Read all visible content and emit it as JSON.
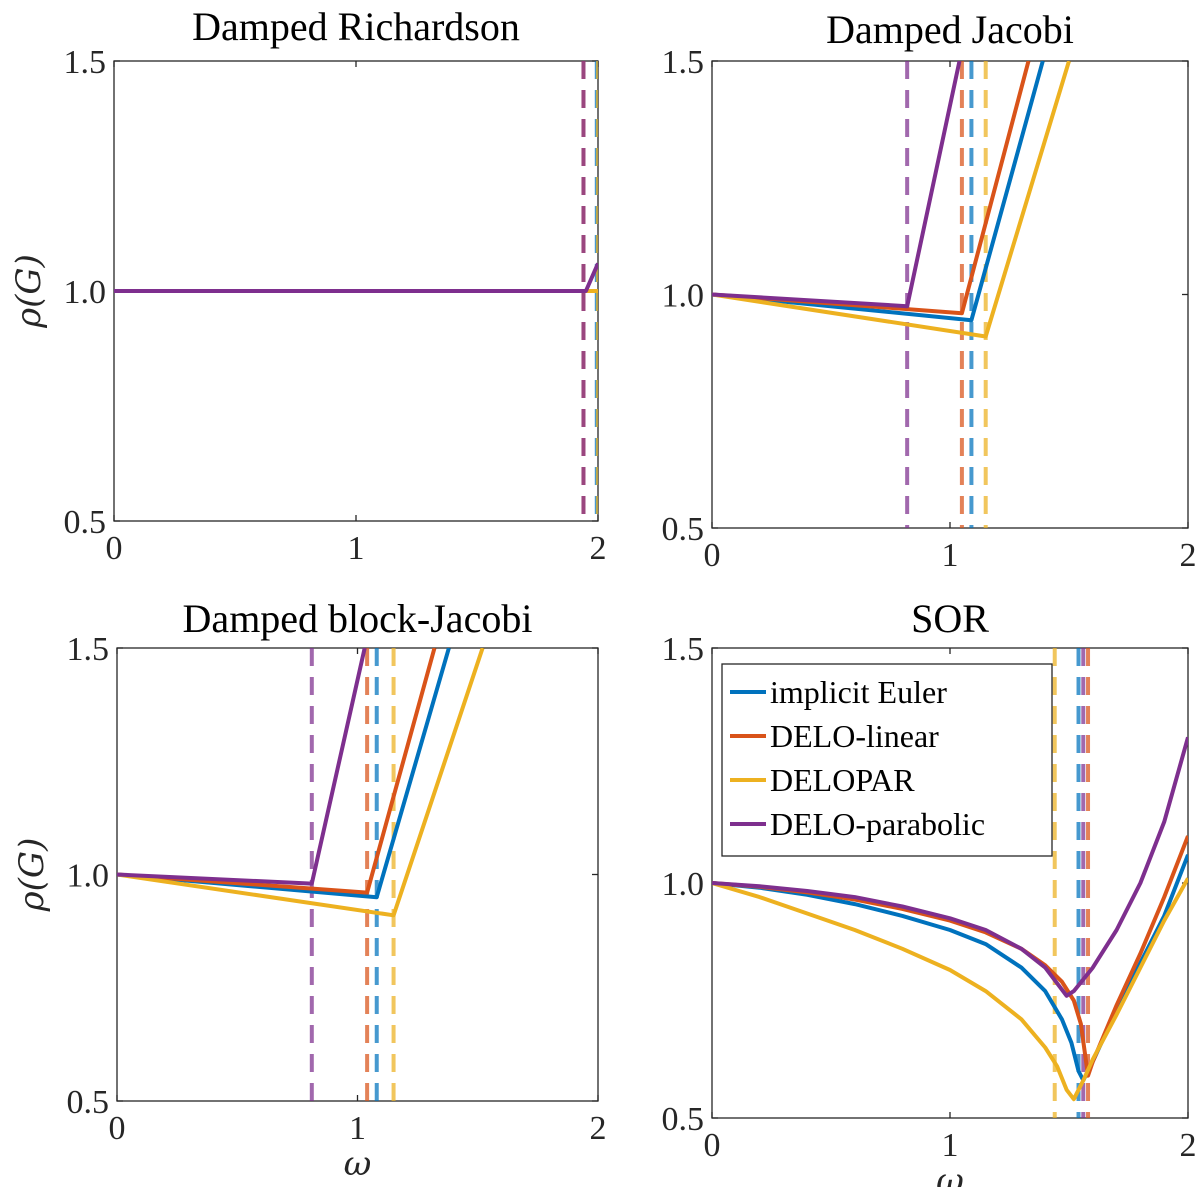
{
  "colors": {
    "implicit Euler": "#0072BD",
    "DELO-linear": "#D95319",
    "DELOPAR": "#EDB120",
    "DELO-parabolic": "#7E2F8E",
    "axis": "#262626"
  },
  "chart_data": [
    {
      "type": "line",
      "title": "Damped Richardson",
      "xlabel": "",
      "ylabel": "ρ(G)",
      "xlim": [
        0,
        2
      ],
      "ylim": [
        0.5,
        1.5
      ],
      "xticks": [
        "0",
        "1",
        "2"
      ],
      "yticks": [
        "0.5",
        "1.0",
        "1.5"
      ],
      "legend": null,
      "series": [
        {
          "name": "implicit Euler",
          "x": [
            0,
            1.95,
            2.0
          ],
          "y": [
            1.0,
            1.0,
            1.0
          ]
        },
        {
          "name": "DELO-linear",
          "x": [
            0,
            1.95,
            2.0
          ],
          "y": [
            1.0,
            1.0,
            1.0
          ]
        },
        {
          "name": "DELOPAR",
          "x": [
            0,
            1.99,
            2.0
          ],
          "y": [
            1.0,
            1.0,
            1.0
          ]
        },
        {
          "name": "DELO-parabolic",
          "x": [
            0,
            1.95,
            2.0
          ],
          "y": [
            1.0,
            1.0,
            1.06
          ]
        }
      ],
      "optimal_omega": [
        {
          "name": "implicit Euler",
          "x": 1.995
        },
        {
          "name": "DELO-linear",
          "x": 1.94
        },
        {
          "name": "DELOPAR",
          "x": 2.0
        },
        {
          "name": "DELO-parabolic",
          "x": 1.94
        }
      ]
    },
    {
      "type": "line",
      "title": "Damped Jacobi",
      "xlabel": "",
      "ylabel": "",
      "xlim": [
        0,
        2
      ],
      "ylim": [
        0.5,
        1.5
      ],
      "xticks": [
        "0",
        "1",
        "2"
      ],
      "yticks": [
        "0.5",
        "1.0",
        "1.5"
      ],
      "legend": null,
      "series": [
        {
          "name": "implicit Euler",
          "x": [
            0,
            1.09,
            1.39
          ],
          "y": [
            1.0,
            0.945,
            1.5
          ]
        },
        {
          "name": "DELO-linear",
          "x": [
            0,
            1.05,
            1.33
          ],
          "y": [
            1.0,
            0.96,
            1.5
          ]
        },
        {
          "name": "DELOPAR",
          "x": [
            0,
            1.15,
            1.5
          ],
          "y": [
            1.0,
            0.91,
            1.5
          ]
        },
        {
          "name": "DELO-parabolic",
          "x": [
            0,
            0.82,
            1.04
          ],
          "y": [
            1.0,
            0.975,
            1.5
          ]
        }
      ],
      "optimal_omega": [
        {
          "name": "implicit Euler",
          "x": 1.09
        },
        {
          "name": "DELO-linear",
          "x": 1.05
        },
        {
          "name": "DELOPAR",
          "x": 1.15
        },
        {
          "name": "DELO-parabolic",
          "x": 0.82
        }
      ]
    },
    {
      "type": "line",
      "title": "Damped block-Jacobi",
      "xlabel": "ω",
      "ylabel": "ρ(G)",
      "xlim": [
        0,
        2
      ],
      "ylim": [
        0.5,
        1.5
      ],
      "xticks": [
        "0",
        "1",
        "2"
      ],
      "yticks": [
        "0.5",
        "1.0",
        "1.5"
      ],
      "legend": null,
      "series": [
        {
          "name": "implicit Euler",
          "x": [
            0,
            1.08,
            1.38
          ],
          "y": [
            1.0,
            0.95,
            1.5
          ]
        },
        {
          "name": "DELO-linear",
          "x": [
            0,
            1.04,
            1.32
          ],
          "y": [
            1.0,
            0.96,
            1.5
          ]
        },
        {
          "name": "DELOPAR",
          "x": [
            0,
            1.15,
            1.52
          ],
          "y": [
            1.0,
            0.91,
            1.5
          ]
        },
        {
          "name": "DELO-parabolic",
          "x": [
            0,
            0.81,
            1.03
          ],
          "y": [
            1.0,
            0.98,
            1.5
          ]
        }
      ],
      "optimal_omega": [
        {
          "name": "implicit Euler",
          "x": 1.08
        },
        {
          "name": "DELO-linear",
          "x": 1.04
        },
        {
          "name": "DELOPAR",
          "x": 1.15
        },
        {
          "name": "DELO-parabolic",
          "x": 0.81
        }
      ]
    },
    {
      "type": "line",
      "title": "SOR",
      "xlabel": "ω",
      "ylabel": "",
      "xlim": [
        0,
        2
      ],
      "ylim": [
        0.5,
        1.5
      ],
      "xticks": [
        "0",
        "1",
        "2"
      ],
      "yticks": [
        "0.5",
        "1.0",
        "1.5"
      ],
      "legend": {
        "placement": "top-left",
        "entries": [
          "implicit Euler",
          "DELO-linear",
          "DELOPAR",
          "DELO-parabolic"
        ]
      },
      "series": [
        {
          "name": "implicit Euler",
          "x": [
            0,
            0.2,
            0.4,
            0.6,
            0.8,
            1.0,
            1.15,
            1.3,
            1.4,
            1.47,
            1.51,
            1.54,
            1.56,
            1.6,
            1.7,
            1.8,
            1.9,
            2.0
          ],
          "y": [
            1.0,
            0.99,
            0.975,
            0.955,
            0.93,
            0.9,
            0.87,
            0.82,
            0.77,
            0.71,
            0.66,
            0.6,
            0.58,
            0.62,
            0.73,
            0.83,
            0.93,
            1.06
          ]
        },
        {
          "name": "DELO-linear",
          "x": [
            0,
            0.2,
            0.4,
            0.6,
            0.8,
            1.0,
            1.15,
            1.3,
            1.4,
            1.47,
            1.52,
            1.55,
            1.58,
            1.6,
            1.7,
            1.8,
            1.9,
            2.0
          ],
          "y": [
            1.0,
            0.992,
            0.98,
            0.965,
            0.945,
            0.92,
            0.895,
            0.86,
            0.825,
            0.79,
            0.75,
            0.7,
            0.59,
            0.62,
            0.74,
            0.85,
            0.97,
            1.1
          ]
        },
        {
          "name": "DELOPAR",
          "x": [
            0,
            0.2,
            0.4,
            0.6,
            0.8,
            1.0,
            1.15,
            1.3,
            1.4,
            1.45,
            1.49,
            1.52,
            1.56,
            1.6,
            1.7,
            1.8,
            1.9,
            2.0
          ],
          "y": [
            1.0,
            0.97,
            0.935,
            0.9,
            0.86,
            0.815,
            0.77,
            0.71,
            0.65,
            0.61,
            0.56,
            0.54,
            0.58,
            0.625,
            0.72,
            0.82,
            0.92,
            1.01
          ]
        },
        {
          "name": "DELO-parabolic",
          "x": [
            0,
            0.2,
            0.4,
            0.6,
            0.8,
            1.0,
            1.15,
            1.3,
            1.4,
            1.46,
            1.49,
            1.52,
            1.6,
            1.7,
            1.8,
            1.9,
            2.0
          ],
          "y": [
            1.0,
            0.993,
            0.983,
            0.97,
            0.95,
            0.925,
            0.9,
            0.86,
            0.82,
            0.78,
            0.76,
            0.77,
            0.82,
            0.9,
            1.0,
            1.13,
            1.31
          ]
        }
      ],
      "optimal_omega": [
        {
          "name": "implicit Euler",
          "x": 1.54
        },
        {
          "name": "DELO-linear",
          "x": 1.58
        },
        {
          "name": "DELOPAR",
          "x": 1.44
        },
        {
          "name": "DELO-parabolic",
          "x": 1.56
        }
      ]
    }
  ]
}
